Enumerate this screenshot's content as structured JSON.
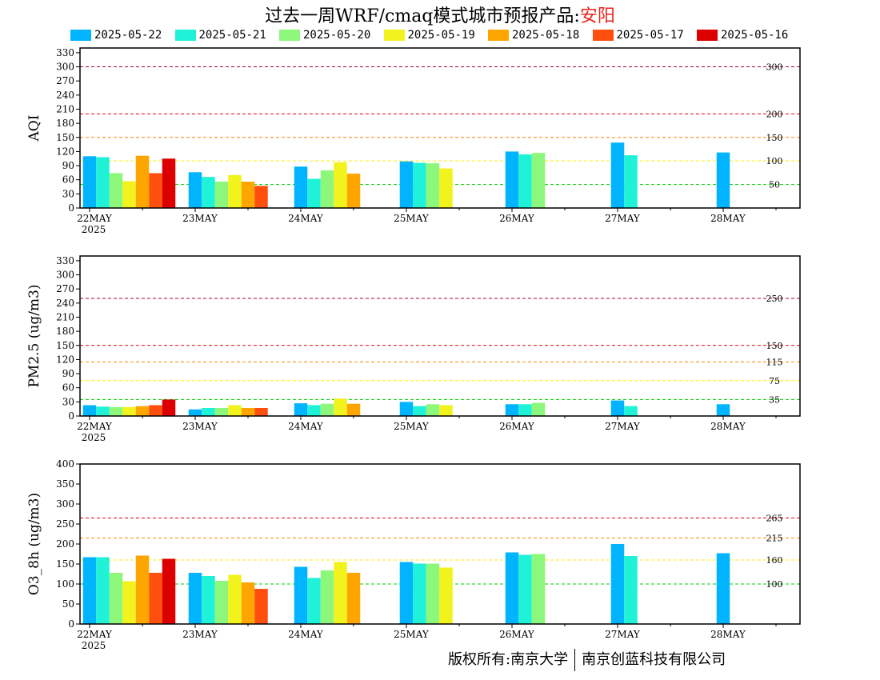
{
  "title": {
    "text": "过去一周WRF/cmaq模式城市预报产品:",
    "location": "安阳"
  },
  "legend": [
    {
      "label": "2025-05-22",
      "color": "#00b4ff"
    },
    {
      "label": "2025-05-21",
      "color": "#1ff2d6"
    },
    {
      "label": "2025-05-20",
      "color": "#8cf77a"
    },
    {
      "label": "2025-05-19",
      "color": "#f2f21c"
    },
    {
      "label": "2025-05-18",
      "color": "#ffa500"
    },
    {
      "label": "2025-05-17",
      "color": "#ff4f0f"
    },
    {
      "label": "2025-05-16",
      "color": "#dd0000"
    }
  ],
  "footer": {
    "left": "版权所有:南京大学",
    "right": "南京创蓝科技有限公司"
  },
  "chart_data": [
    {
      "type": "bar",
      "ylabel": "AQI",
      "ylim": [
        0,
        340
      ],
      "yticks": [
        0,
        30,
        60,
        90,
        120,
        150,
        180,
        210,
        240,
        270,
        300,
        330
      ],
      "categories": [
        "22MAY",
        "23MAY",
        "24MAY",
        "25MAY",
        "26MAY",
        "27MAY",
        "28MAY"
      ],
      "xsub": "2025",
      "thresholds": [
        {
          "value": 300,
          "label": "300",
          "color": "#a0004a"
        },
        {
          "value": 200,
          "label": "200",
          "color": "#e00000"
        },
        {
          "value": 150,
          "label": "150",
          "color": "#ff8800"
        },
        {
          "value": 100,
          "label": "100",
          "color": "#ffee00"
        },
        {
          "value": 50,
          "label": "50",
          "color": "#00cc00"
        }
      ],
      "series": [
        {
          "name": "2025-05-22",
          "values": [
            110,
            76,
            88,
            99,
            120,
            139,
            118
          ]
        },
        {
          "name": "2025-05-21",
          "values": [
            108,
            66,
            62,
            96,
            114,
            112,
            null
          ]
        },
        {
          "name": "2025-05-20",
          "values": [
            74,
            56,
            80,
            95,
            117,
            null,
            null
          ]
        },
        {
          "name": "2025-05-19",
          "values": [
            57,
            70,
            97,
            84,
            null,
            null,
            null
          ]
        },
        {
          "name": "2025-05-18",
          "values": [
            111,
            56,
            73,
            null,
            null,
            null,
            null
          ]
        },
        {
          "name": "2025-05-17",
          "values": [
            74,
            47,
            null,
            null,
            null,
            null,
            null
          ]
        },
        {
          "name": "2025-05-16",
          "values": [
            105,
            null,
            null,
            null,
            null,
            null,
            null
          ]
        }
      ]
    },
    {
      "type": "bar",
      "ylabel": "PM2.5 (ug/m3)",
      "ylim": [
        0,
        340
      ],
      "yticks": [
        0,
        30,
        60,
        90,
        120,
        150,
        180,
        210,
        240,
        270,
        300,
        330
      ],
      "categories": [
        "22MAY",
        "23MAY",
        "24MAY",
        "25MAY",
        "26MAY",
        "27MAY",
        "28MAY"
      ],
      "xsub": "2025",
      "thresholds": [
        {
          "value": 250,
          "label": "250",
          "color": "#a0004a"
        },
        {
          "value": 150,
          "label": "150",
          "color": "#e00000"
        },
        {
          "value": 115,
          "label": "115",
          "color": "#ff8800"
        },
        {
          "value": 75,
          "label": "75",
          "color": "#ffee00"
        },
        {
          "value": 35,
          "label": "35",
          "color": "#00cc00"
        }
      ],
      "series": [
        {
          "name": "2025-05-22",
          "values": [
            23,
            14,
            27,
            30,
            25,
            33,
            25
          ]
        },
        {
          "name": "2025-05-21",
          "values": [
            20,
            17,
            23,
            21,
            25,
            21,
            null
          ]
        },
        {
          "name": "2025-05-20",
          "values": [
            19,
            17,
            26,
            25,
            28,
            null,
            null
          ]
        },
        {
          "name": "2025-05-19",
          "values": [
            19,
            23,
            37,
            23,
            null,
            null,
            null
          ]
        },
        {
          "name": "2025-05-18",
          "values": [
            21,
            17,
            26,
            null,
            null,
            null,
            null
          ]
        },
        {
          "name": "2025-05-17",
          "values": [
            23,
            17,
            null,
            null,
            null,
            null,
            null
          ]
        },
        {
          "name": "2025-05-16",
          "values": [
            35,
            null,
            null,
            null,
            null,
            null,
            null
          ]
        }
      ]
    },
    {
      "type": "bar",
      "ylabel": "O3_8h (ug/m3)",
      "ylim": [
        0,
        400
      ],
      "yticks": [
        0,
        50,
        100,
        150,
        200,
        250,
        300,
        350,
        400
      ],
      "categories": [
        "22MAY",
        "23MAY",
        "24MAY",
        "25MAY",
        "26MAY",
        "27MAY",
        "28MAY"
      ],
      "xsub": "2025",
      "thresholds": [
        {
          "value": 265,
          "label": "265",
          "color": "#e00000"
        },
        {
          "value": 215,
          "label": "215",
          "color": "#ff8800"
        },
        {
          "value": 160,
          "label": "160",
          "color": "#ffee00"
        },
        {
          "value": 100,
          "label": "100",
          "color": "#00cc00"
        }
      ],
      "series": [
        {
          "name": "2025-05-22",
          "values": [
            167,
            128,
            143,
            155,
            179,
            200,
            177
          ]
        },
        {
          "name": "2025-05-21",
          "values": [
            167,
            120,
            115,
            151,
            173,
            170,
            null
          ]
        },
        {
          "name": "2025-05-20",
          "values": [
            128,
            108,
            134,
            151,
            175,
            null,
            null
          ]
        },
        {
          "name": "2025-05-19",
          "values": [
            107,
            123,
            155,
            141,
            null,
            null,
            null
          ]
        },
        {
          "name": "2025-05-18",
          "values": [
            171,
            104,
            128,
            null,
            null,
            null,
            null
          ]
        },
        {
          "name": "2025-05-17",
          "values": [
            128,
            88,
            null,
            null,
            null,
            null,
            null
          ]
        },
        {
          "name": "2025-05-16",
          "values": [
            163,
            null,
            null,
            null,
            null,
            null,
            null
          ]
        }
      ]
    }
  ]
}
